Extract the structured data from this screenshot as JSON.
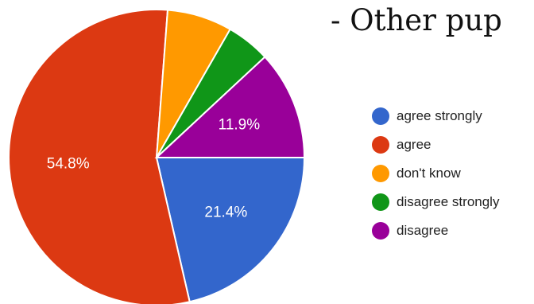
{
  "heading": "- Other pup",
  "chart_data": {
    "type": "pie",
    "title": "",
    "categories": [
      "agree strongly",
      "agree",
      "don't know",
      "disagree strongly",
      "disagree"
    ],
    "values": [
      21.4,
      54.8,
      7.1,
      4.8,
      11.9
    ],
    "value_labels": [
      "21.4%",
      "54.8%",
      "",
      "",
      "11.9%"
    ],
    "colors": [
      "#3366cc",
      "#dc3912",
      "#ff9900",
      "#109618",
      "#990099"
    ],
    "legend_position": "right"
  }
}
